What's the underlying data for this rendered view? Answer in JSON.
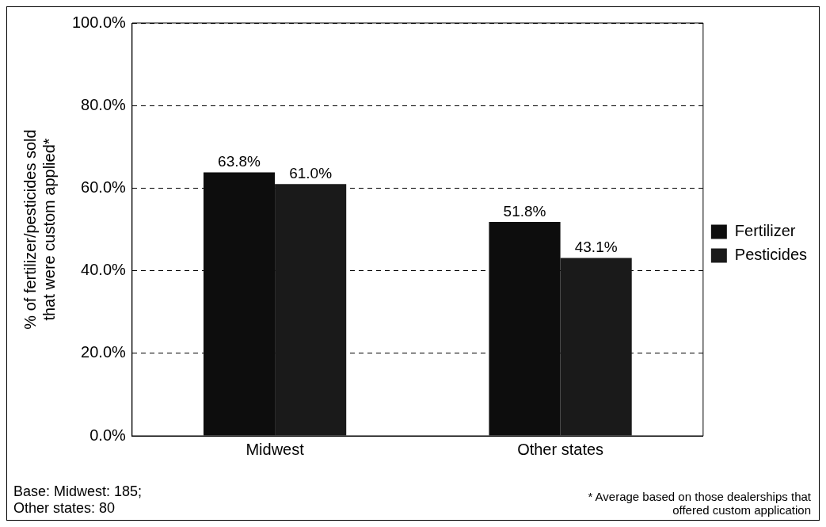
{
  "chart_data": {
    "type": "bar",
    "ylabel": "% of fertilizer/pesticides sold\nthat were custom applied*",
    "categories": [
      "Midwest",
      "Other states"
    ],
    "series": [
      {
        "name": "Fertilizer",
        "color": "#0d0d0d",
        "values": [
          63.8,
          51.8
        ],
        "value_labels": [
          "63.8%",
          "51.8%"
        ]
      },
      {
        "name": "Pesticides",
        "color": "#1a1a1a",
        "values": [
          61.0,
          43.1
        ],
        "value_labels": [
          "61.0%",
          "43.1%"
        ]
      }
    ],
    "ylim": [
      0,
      100
    ],
    "yticks": [
      {
        "value": 0,
        "label": "0.0%"
      },
      {
        "value": 20,
        "label": "20.0%"
      },
      {
        "value": 40,
        "label": "40.0%"
      },
      {
        "value": 60,
        "label": "60.0%"
      },
      {
        "value": 80,
        "label": "80.0%"
      },
      {
        "value": 100,
        "label": "100.0%"
      }
    ],
    "grid": "y",
    "legend": "right",
    "annotations": [
      "Base:  Midwest: 185;\nOther states: 80",
      "* Average based on those dealerships that\noffered custom application"
    ]
  }
}
